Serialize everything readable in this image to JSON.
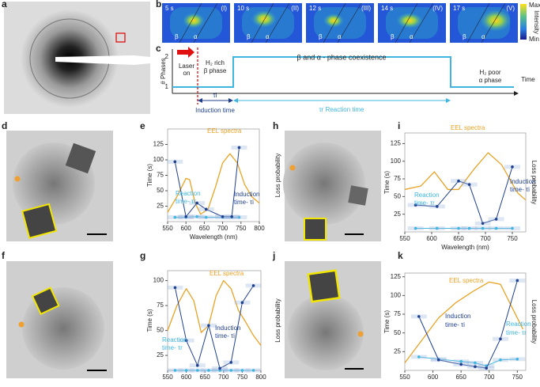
{
  "figure": {
    "panel_labels": {
      "a": "a",
      "b": "b",
      "c": "c",
      "d": "d",
      "e": "e",
      "f": "f",
      "g": "g",
      "h": "h",
      "i": "i",
      "j": "j",
      "k": "k"
    },
    "b": {
      "frames": [
        {
          "time": "5 s",
          "roman": "(I)"
        },
        {
          "time": "10 s",
          "roman": "(II)"
        },
        {
          "time": "12 s",
          "roman": "(III)"
        },
        {
          "time": "14 s",
          "roman": "(IV)"
        },
        {
          "time": "17 s",
          "roman": "(V)"
        }
      ],
      "beta": "β",
      "alpha": "α",
      "colorbar": {
        "max": "Max",
        "title": "Intensity",
        "min": "Min"
      }
    },
    "c": {
      "ylabel": "# Phases",
      "ytick_top": "2",
      "ytick_bottom": "1",
      "laser": [
        "Laser",
        "on"
      ],
      "rich": [
        "H₂ rich",
        "β phase"
      ],
      "coexistence": "β and α - phase coexistence",
      "poor": [
        "H₂ poor",
        "α phase"
      ],
      "xlabel": "Time",
      "tau_i": "τi",
      "induction": "Induction time",
      "reaction": "τr Reaction time"
    }
  },
  "chart_data": [
    {
      "type": "line",
      "xlabel": "Wavelength (nm)",
      "ylabel": "Time (s)",
      "y2label": "Loss probability",
      "xlim": [
        550,
        800
      ],
      "ylim": [
        0,
        150
      ],
      "xticks": [
        550,
        600,
        650,
        700,
        750,
        800
      ],
      "yticks": [
        25,
        50,
        75,
        100,
        125
      ],
      "annotations": [
        "EEL spectra",
        "Reaction",
        "time- τr",
        "Induction",
        "time- τi"
      ],
      "series": [
        {
          "name": "EEL spectra",
          "color": "#e8a325",
          "x": [
            550,
            575,
            600,
            610,
            625,
            640,
            660,
            680,
            700,
            720,
            740,
            760,
            780,
            800
          ],
          "values": [
            15,
            40,
            70,
            68,
            30,
            12,
            20,
            55,
            95,
            110,
            95,
            60,
            40,
            30
          ]
        },
        {
          "name": "Reaction time",
          "color": "#3fb6e0",
          "x": [
            570,
            600,
            630,
            655,
            700,
            725,
            745
          ],
          "values": [
            7,
            7,
            8,
            7,
            7,
            7,
            7
          ]
        },
        {
          "name": "Induction time",
          "color": "#1f3f8f",
          "x": [
            570,
            600,
            630,
            655,
            700,
            725,
            745
          ],
          "values": [
            97,
            8,
            30,
            20,
            8,
            8,
            120
          ]
        }
      ]
    },
    {
      "type": "line",
      "xlabel": "Wavelength (nm)",
      "ylabel": "Time (s)",
      "y2label": "Loss probability",
      "xlim": [
        550,
        800
      ],
      "ylim": [
        10,
        110
      ],
      "xticks": [
        550,
        600,
        650,
        700,
        750,
        800
      ],
      "yticks": [
        25,
        50,
        75,
        100
      ],
      "annotations": [
        "EEL spectra",
        "Induction",
        "time- τi",
        "Reaction",
        "time- τr"
      ],
      "series": [
        {
          "name": "EEL spectra",
          "color": "#e8a325",
          "x": [
            550,
            575,
            600,
            620,
            640,
            660,
            680,
            700,
            720,
            740,
            760,
            780,
            800
          ],
          "values": [
            50,
            75,
            92,
            80,
            48,
            55,
            85,
            100,
            92,
            70,
            58,
            45,
            35
          ]
        },
        {
          "name": "Reaction time",
          "color": "#3fb6e0",
          "x": [
            570,
            600,
            630,
            660,
            690,
            720,
            750,
            780
          ],
          "values": [
            10,
            10,
            10,
            10,
            10,
            10,
            10,
            10
          ]
        },
        {
          "name": "Induction time",
          "color": "#1f3f8f",
          "x": [
            570,
            600,
            630,
            660,
            690,
            720,
            750,
            780
          ],
          "values": [
            93,
            40,
            15,
            55,
            12,
            18,
            78,
            95
          ]
        }
      ]
    },
    {
      "type": "line",
      "xlabel": "Wavelength (nm)",
      "ylabel": "Time (s)",
      "y2label": "Loss probability",
      "xlim": [
        550,
        775
      ],
      "ylim": [
        0,
        140
      ],
      "xticks": [
        550,
        600,
        650,
        700,
        750
      ],
      "yticks": [
        25,
        50,
        75,
        100,
        125
      ],
      "annotations": [
        "EEL spectra",
        "Induction",
        "time- τi",
        "Reaction",
        "time- τr"
      ],
      "series": [
        {
          "name": "EEL spectra",
          "color": "#e8a325",
          "x": [
            550,
            580,
            605,
            630,
            650,
            680,
            705,
            730,
            760,
            775
          ],
          "values": [
            60,
            65,
            85,
            60,
            60,
            90,
            112,
            95,
            55,
            45
          ]
        },
        {
          "name": "Reaction time",
          "color": "#3fb6e0",
          "x": [
            570,
            610,
            650,
            670,
            695,
            720,
            750
          ],
          "values": [
            5,
            5,
            5,
            5,
            5,
            5,
            5
          ]
        },
        {
          "name": "Induction time",
          "color": "#1f3f8f",
          "x": [
            570,
            610,
            650,
            670,
            695,
            720,
            750
          ],
          "values": [
            38,
            36,
            72,
            67,
            12,
            18,
            92
          ]
        }
      ]
    },
    {
      "type": "line",
      "xlabel": "Wavelength (nm)",
      "ylabel": "Time (s)",
      "y2label": "Loss probability",
      "xlim": [
        550,
        765
      ],
      "ylim": [
        0,
        130
      ],
      "xticks": [
        550,
        600,
        650,
        700,
        750
      ],
      "yticks": [
        25,
        50,
        75,
        100,
        125
      ],
      "annotations": [
        "EEL spectra",
        "Induction",
        "time- τi",
        "Reaction",
        "time- τr"
      ],
      "series": [
        {
          "name": "EEL spectra",
          "color": "#e8a325",
          "x": [
            550,
            580,
            610,
            640,
            670,
            700,
            720,
            740,
            760
          ],
          "values": [
            10,
            40,
            70,
            90,
            105,
            118,
            115,
            85,
            55
          ]
        },
        {
          "name": "Reaction time",
          "color": "#3fb6e0",
          "x": [
            575,
            610,
            650,
            675,
            695,
            720,
            750
          ],
          "values": [
            18,
            15,
            12,
            10,
            6,
            14,
            15
          ]
        },
        {
          "name": "Induction time",
          "color": "#1f3f8f",
          "x": [
            575,
            610,
            650,
            675,
            695,
            720,
            750
          ],
          "values": [
            72,
            14,
            8,
            5,
            3,
            42,
            120
          ]
        }
      ]
    }
  ]
}
